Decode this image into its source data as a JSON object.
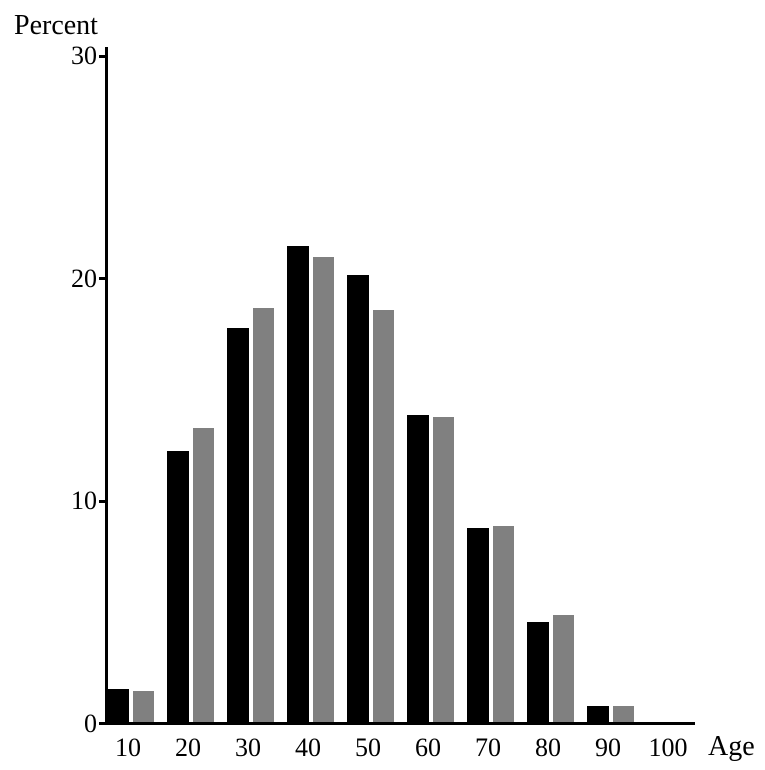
{
  "chart_data": {
    "type": "bar",
    "title": "",
    "ylabel": "Percent",
    "xlabel": "Age",
    "categories": [
      10,
      20,
      30,
      40,
      50,
      60,
      70,
      80,
      90,
      100
    ],
    "series": [
      {
        "name": "black",
        "color": "#000000",
        "values": [
          1.5,
          12.2,
          17.7,
          21.4,
          20.1,
          13.8,
          8.7,
          4.5,
          0.7,
          0
        ]
      },
      {
        "name": "gray",
        "color": "#808080",
        "values": [
          1.4,
          13.2,
          18.6,
          20.9,
          18.5,
          13.7,
          8.8,
          4.8,
          0.7,
          0
        ]
      }
    ],
    "y_ticks": [
      0,
      10,
      20,
      30
    ],
    "ylim": [
      0,
      30
    ],
    "grid": false,
    "legend": "none",
    "axis_color": "#000000"
  }
}
